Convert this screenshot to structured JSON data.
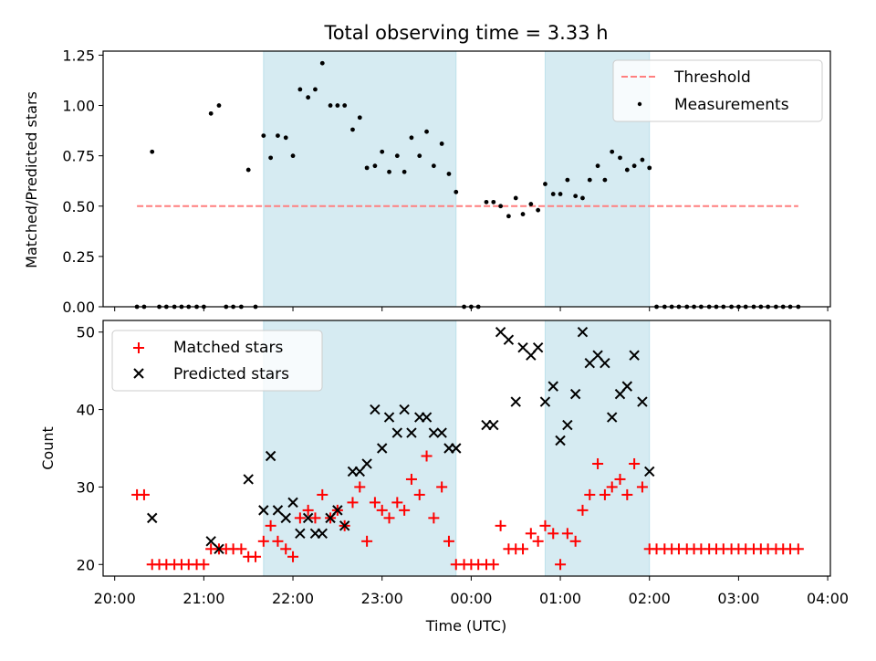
{
  "chart_data": {
    "title": "Total observing time = 3.33 h",
    "xlabel": "Time (UTC)",
    "x_tick_labels": [
      "20:00",
      "21:00",
      "22:00",
      "23:00",
      "00:00",
      "01:00",
      "02:00",
      "03:00",
      "04:00"
    ],
    "x_ticks_hours": [
      0,
      1,
      2,
      3,
      4,
      5,
      6,
      7,
      8
    ],
    "x_range_hours": [
      -0.13,
      8.03
    ],
    "shaded_intervals_hours": [
      [
        1.67,
        3.83
      ],
      [
        4.83,
        6.0
      ]
    ],
    "shade_color": "#add8e6",
    "panels": [
      {
        "type": "scatter",
        "ylabel": "Matched/Predicted stars",
        "ylim": [
          0,
          1.27
        ],
        "y_ticks": [
          "0.00",
          "0.25",
          "0.50",
          "0.75",
          "1.00",
          "1.25"
        ],
        "y_tick_values": [
          0,
          0.25,
          0.5,
          0.75,
          1.0,
          1.25
        ],
        "legend": {
          "placement": "upper-right",
          "entries": [
            "Threshold",
            "Measurements"
          ]
        },
        "threshold": {
          "name": "Threshold",
          "value": 0.5,
          "x": [
            0.25,
            7.67
          ],
          "color": "#ff7f7f"
        },
        "series": [
          {
            "name": "Measurements",
            "color": "#000000",
            "points": [
              [
                0.25,
                0.0
              ],
              [
                0.33,
                0.0
              ],
              [
                0.42,
                0.77
              ],
              [
                0.5,
                0.0
              ],
              [
                0.58,
                0.0
              ],
              [
                0.67,
                0.0
              ],
              [
                0.75,
                0.0
              ],
              [
                0.83,
                0.0
              ],
              [
                0.92,
                0.0
              ],
              [
                1.0,
                0.0
              ],
              [
                1.08,
                0.96
              ],
              [
                1.17,
                1.0
              ],
              [
                1.25,
                0.0
              ],
              [
                1.33,
                0.0
              ],
              [
                1.42,
                0.0
              ],
              [
                1.5,
                0.68
              ],
              [
                1.58,
                0.0
              ],
              [
                1.67,
                0.85
              ],
              [
                1.75,
                0.74
              ],
              [
                1.83,
                0.85
              ],
              [
                1.92,
                0.84
              ],
              [
                2.0,
                0.75
              ],
              [
                2.08,
                1.08
              ],
              [
                2.17,
                1.04
              ],
              [
                2.25,
                1.08
              ],
              [
                2.33,
                1.21
              ],
              [
                2.42,
                1.0
              ],
              [
                2.5,
                1.0
              ],
              [
                2.58,
                1.0
              ],
              [
                2.67,
                0.88
              ],
              [
                2.75,
                0.94
              ],
              [
                2.83,
                0.69
              ],
              [
                2.92,
                0.7
              ],
              [
                3.0,
                0.77
              ],
              [
                3.08,
                0.67
              ],
              [
                3.17,
                0.75
              ],
              [
                3.25,
                0.67
              ],
              [
                3.33,
                0.84
              ],
              [
                3.42,
                0.75
              ],
              [
                3.5,
                0.87
              ],
              [
                3.58,
                0.7
              ],
              [
                3.67,
                0.81
              ],
              [
                3.75,
                0.66
              ],
              [
                3.83,
                0.57
              ],
              [
                3.92,
                0.0
              ],
              [
                4.0,
                0.0
              ],
              [
                4.08,
                0.0
              ],
              [
                4.17,
                0.52
              ],
              [
                4.25,
                0.52
              ],
              [
                4.33,
                0.5
              ],
              [
                4.42,
                0.45
              ],
              [
                4.5,
                0.54
              ],
              [
                4.58,
                0.46
              ],
              [
                4.67,
                0.51
              ],
              [
                4.75,
                0.48
              ],
              [
                4.83,
                0.61
              ],
              [
                4.92,
                0.56
              ],
              [
                5.0,
                0.56
              ],
              [
                5.08,
                0.63
              ],
              [
                5.17,
                0.55
              ],
              [
                5.25,
                0.54
              ],
              [
                5.33,
                0.63
              ],
              [
                5.42,
                0.7
              ],
              [
                5.5,
                0.63
              ],
              [
                5.58,
                0.77
              ],
              [
                5.67,
                0.74
              ],
              [
                5.75,
                0.68
              ],
              [
                5.83,
                0.7
              ],
              [
                5.92,
                0.73
              ],
              [
                6.0,
                0.69
              ],
              [
                6.08,
                0.0
              ],
              [
                6.17,
                0.0
              ],
              [
                6.25,
                0.0
              ],
              [
                6.33,
                0.0
              ],
              [
                6.42,
                0.0
              ],
              [
                6.5,
                0.0
              ],
              [
                6.58,
                0.0
              ],
              [
                6.67,
                0.0
              ],
              [
                6.75,
                0.0
              ],
              [
                6.83,
                0.0
              ],
              [
                6.92,
                0.0
              ],
              [
                7.0,
                0.0
              ],
              [
                7.08,
                0.0
              ],
              [
                7.17,
                0.0
              ],
              [
                7.25,
                0.0
              ],
              [
                7.33,
                0.0
              ],
              [
                7.42,
                0.0
              ],
              [
                7.5,
                0.0
              ],
              [
                7.58,
                0.0
              ],
              [
                7.67,
                0.0
              ]
            ]
          }
        ]
      },
      {
        "type": "scatter",
        "ylabel": "Count",
        "ylim": [
          18.5,
          51.5
        ],
        "y_ticks": [
          "20",
          "30",
          "40",
          "50"
        ],
        "y_tick_values": [
          20,
          30,
          40,
          50
        ],
        "legend": {
          "placement": "upper-left",
          "entries": [
            "Matched stars",
            "Predicted stars"
          ]
        },
        "series": [
          {
            "name": "Matched stars",
            "marker": "+",
            "color": "#ff0000",
            "points": [
              [
                0.25,
                29
              ],
              [
                0.33,
                29
              ],
              [
                0.42,
                20
              ],
              [
                0.5,
                20
              ],
              [
                0.58,
                20
              ],
              [
                0.67,
                20
              ],
              [
                0.75,
                20
              ],
              [
                0.83,
                20
              ],
              [
                0.92,
                20
              ],
              [
                1.0,
                20
              ],
              [
                1.08,
                22
              ],
              [
                1.17,
                22
              ],
              [
                1.25,
                22
              ],
              [
                1.33,
                22
              ],
              [
                1.42,
                22
              ],
              [
                1.5,
                21
              ],
              [
                1.58,
                21
              ],
              [
                1.67,
                23
              ],
              [
                1.75,
                25
              ],
              [
                1.83,
                23
              ],
              [
                1.92,
                22
              ],
              [
                2.0,
                21
              ],
              [
                2.08,
                26
              ],
              [
                2.17,
                27
              ],
              [
                2.25,
                26
              ],
              [
                2.33,
                29
              ],
              [
                2.42,
                26
              ],
              [
                2.5,
                27
              ],
              [
                2.58,
                25
              ],
              [
                2.67,
                28
              ],
              [
                2.75,
                30
              ],
              [
                2.83,
                23
              ],
              [
                2.92,
                28
              ],
              [
                3.0,
                27
              ],
              [
                3.08,
                26
              ],
              [
                3.17,
                28
              ],
              [
                3.25,
                27
              ],
              [
                3.33,
                31
              ],
              [
                3.42,
                29
              ],
              [
                3.5,
                34
              ],
              [
                3.58,
                26
              ],
              [
                3.67,
                30
              ],
              [
                3.75,
                23
              ],
              [
                3.83,
                20
              ],
              [
                3.92,
                20
              ],
              [
                4.0,
                20
              ],
              [
                4.08,
                20
              ],
              [
                4.17,
                20
              ],
              [
                4.25,
                20
              ],
              [
                4.33,
                25
              ],
              [
                4.42,
                22
              ],
              [
                4.5,
                22
              ],
              [
                4.58,
                22
              ],
              [
                4.67,
                24
              ],
              [
                4.75,
                23
              ],
              [
                4.83,
                25
              ],
              [
                4.92,
                24
              ],
              [
                5.0,
                20
              ],
              [
                5.08,
                24
              ],
              [
                5.17,
                23
              ],
              [
                5.25,
                27
              ],
              [
                5.33,
                29
              ],
              [
                5.42,
                33
              ],
              [
                5.5,
                29
              ],
              [
                5.58,
                30
              ],
              [
                5.67,
                31
              ],
              [
                5.75,
                29
              ],
              [
                5.83,
                33
              ],
              [
                5.92,
                30
              ],
              [
                6.0,
                22
              ],
              [
                6.08,
                22
              ],
              [
                6.17,
                22
              ],
              [
                6.25,
                22
              ],
              [
                6.33,
                22
              ],
              [
                6.42,
                22
              ],
              [
                6.5,
                22
              ],
              [
                6.58,
                22
              ],
              [
                6.67,
                22
              ],
              [
                6.75,
                22
              ],
              [
                6.83,
                22
              ],
              [
                6.92,
                22
              ],
              [
                7.0,
                22
              ],
              [
                7.08,
                22
              ],
              [
                7.17,
                22
              ],
              [
                7.25,
                22
              ],
              [
                7.33,
                22
              ],
              [
                7.42,
                22
              ],
              [
                7.5,
                22
              ],
              [
                7.58,
                22
              ],
              [
                7.67,
                22
              ]
            ]
          },
          {
            "name": "Predicted stars",
            "marker": "x",
            "color": "#000000",
            "points": [
              [
                0.42,
                26
              ],
              [
                1.08,
                23
              ],
              [
                1.17,
                22
              ],
              [
                1.5,
                31
              ],
              [
                1.67,
                27
              ],
              [
                1.75,
                34
              ],
              [
                1.83,
                27
              ],
              [
                1.92,
                26
              ],
              [
                2.0,
                28
              ],
              [
                2.08,
                24
              ],
              [
                2.17,
                26
              ],
              [
                2.25,
                24
              ],
              [
                2.33,
                24
              ],
              [
                2.42,
                26
              ],
              [
                2.5,
                27
              ],
              [
                2.58,
                25
              ],
              [
                2.67,
                32
              ],
              [
                2.75,
                32
              ],
              [
                2.83,
                33
              ],
              [
                2.92,
                40
              ],
              [
                3.0,
                35
              ],
              [
                3.08,
                39
              ],
              [
                3.17,
                37
              ],
              [
                3.25,
                40
              ],
              [
                3.33,
                37
              ],
              [
                3.42,
                39
              ],
              [
                3.5,
                39
              ],
              [
                3.58,
                37
              ],
              [
                3.67,
                37
              ],
              [
                3.75,
                35
              ],
              [
                3.83,
                35
              ],
              [
                4.17,
                38
              ],
              [
                4.25,
                38
              ],
              [
                4.33,
                50
              ],
              [
                4.42,
                49
              ],
              [
                4.5,
                41
              ],
              [
                4.58,
                48
              ],
              [
                4.67,
                47
              ],
              [
                4.75,
                48
              ],
              [
                4.83,
                41
              ],
              [
                4.92,
                43
              ],
              [
                5.0,
                36
              ],
              [
                5.08,
                38
              ],
              [
                5.17,
                42
              ],
              [
                5.25,
                50
              ],
              [
                5.33,
                46
              ],
              [
                5.42,
                47
              ],
              [
                5.5,
                46
              ],
              [
                5.58,
                39
              ],
              [
                5.67,
                42
              ],
              [
                5.75,
                43
              ],
              [
                5.83,
                47
              ],
              [
                5.92,
                41
              ],
              [
                6.0,
                32
              ]
            ]
          }
        ]
      }
    ]
  }
}
